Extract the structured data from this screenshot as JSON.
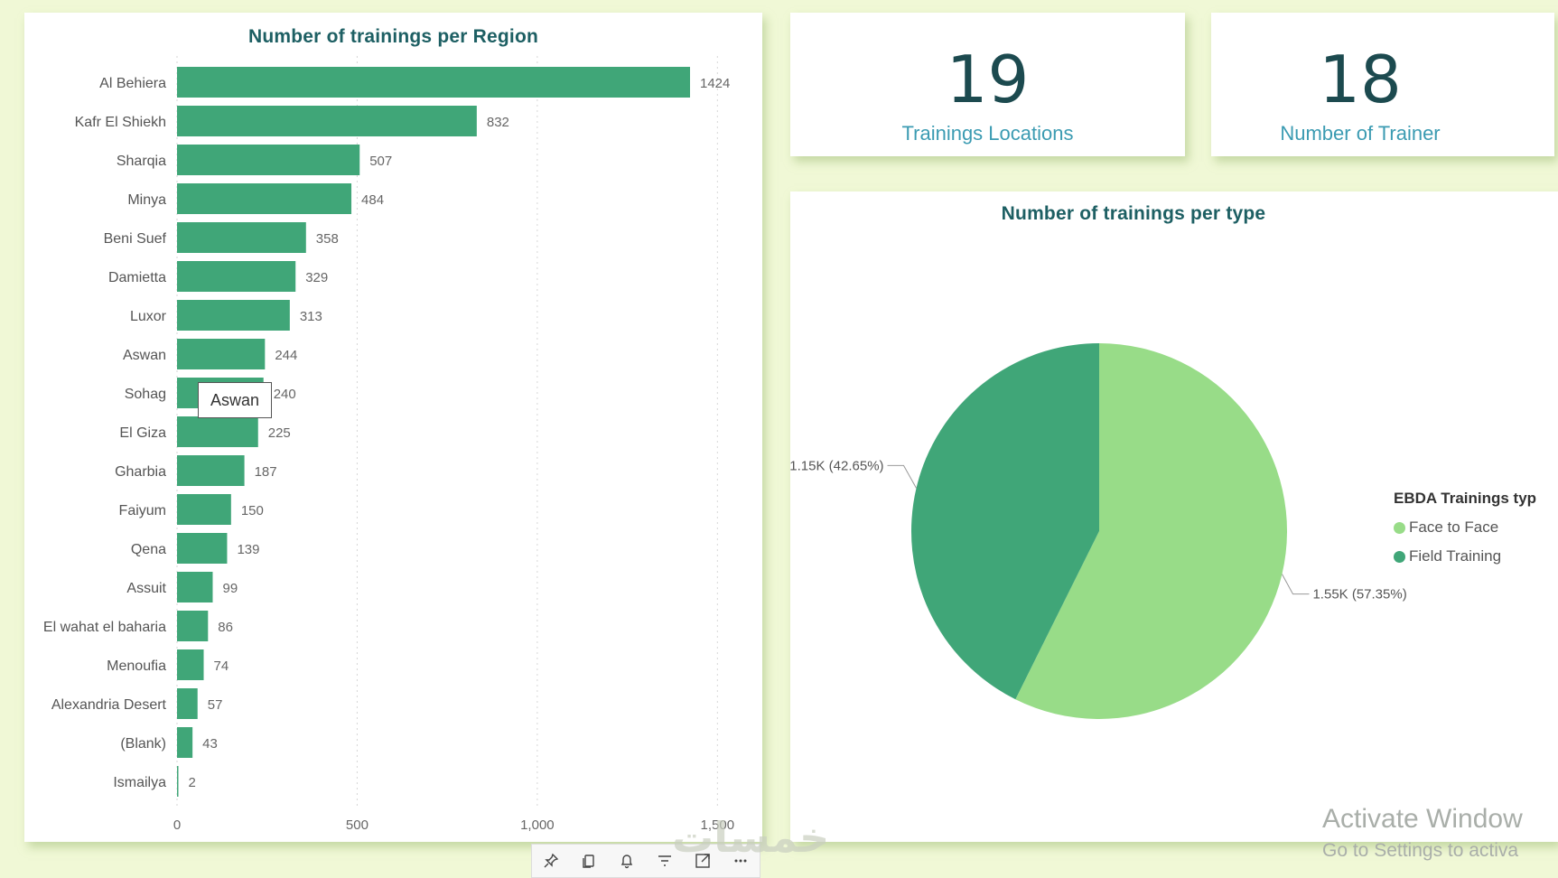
{
  "bar_visual": {
    "title": "Number of trainings per Region",
    "tooltip": "Aswan"
  },
  "kpis": [
    {
      "value": "19",
      "label": "Trainings Locations"
    },
    {
      "value": "18",
      "label": "Number of Trainer"
    }
  ],
  "pie_visual": {
    "title": "Number of trainings per type",
    "legend_title": "EBDA Trainings typ",
    "legend": [
      {
        "label": "Face to Face",
        "color": "#98dc88"
      },
      {
        "label": "Field Training",
        "color": "#40a678"
      }
    ]
  },
  "toolbar": {
    "icons": [
      "pin-icon",
      "copy-icon",
      "bell-icon",
      "filter-icon",
      "focus-mode-icon",
      "more-options-icon"
    ]
  },
  "watermark": {
    "activate_line1": "Activate Window",
    "activate_line2": "Go to Settings to activa",
    "arabic": "خمسات"
  },
  "chart_data": [
    {
      "type": "bar",
      "orientation": "horizontal",
      "title": "Number of trainings per Region",
      "categories": [
        "Al Behiera",
        "Kafr El Shiekh",
        "Sharqia",
        "Minya",
        "Beni Suef",
        "Damietta",
        "Luxor",
        "Aswan",
        "Sohag",
        "El Giza",
        "Gharbia",
        "Faiyum",
        "Qena",
        "Assuit",
        "El wahat el baharia",
        "Menoufia",
        "Alexandria Desert",
        "(Blank)",
        "Ismailya"
      ],
      "values": [
        1424,
        832,
        507,
        484,
        358,
        329,
        313,
        244,
        240,
        225,
        187,
        150,
        139,
        99,
        86,
        74,
        57,
        43,
        2
      ],
      "xticks": [
        "0",
        "500",
        "1,000",
        "1,500"
      ],
      "xlim": [
        0,
        1500
      ],
      "grid": true,
      "color": "#40a678"
    },
    {
      "type": "pie",
      "title": "Number of trainings per type",
      "slices": [
        {
          "label": "Face to Face",
          "value": 1550,
          "percent": 57.35,
          "data_label": "1.55K (57.35%)",
          "color": "#98dc88"
        },
        {
          "label": "Field Training",
          "value": 1150,
          "percent": 42.65,
          "data_label": "1.15K (42.65%)",
          "color": "#40a678"
        }
      ],
      "legend_position": "right"
    }
  ]
}
